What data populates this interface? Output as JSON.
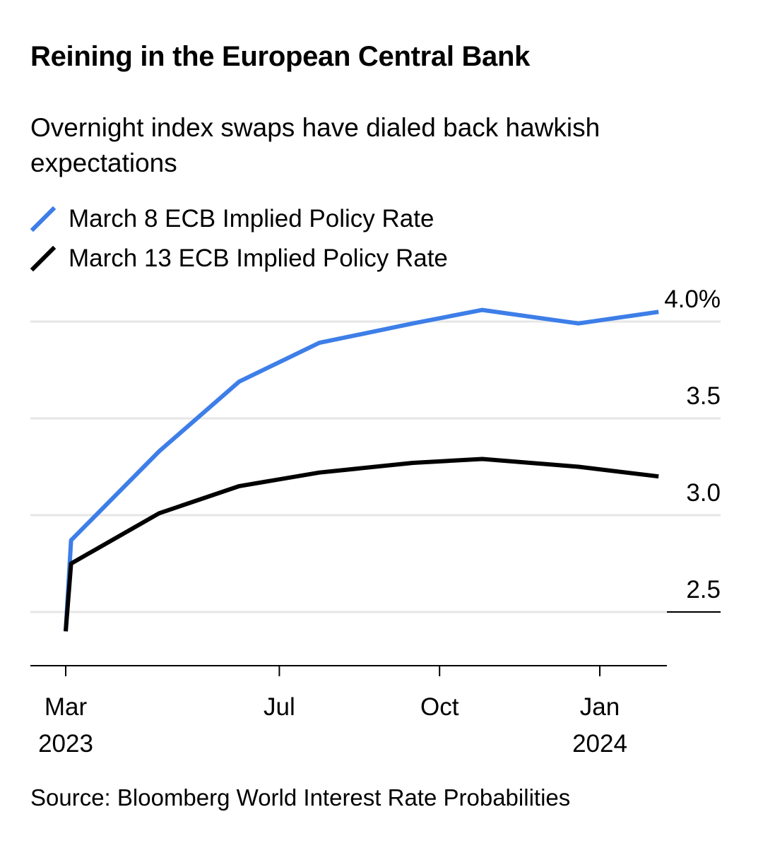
{
  "chart_data": {
    "type": "line",
    "title": "Reining in the European Central Bank",
    "subtitle": "Overnight index swaps have dialed back hawkish expectations",
    "source": "Source: Bloomberg World Interest Rate Probabilities",
    "xlabel": "",
    "ylabel": "",
    "ylim": [
      2.2,
      4.1
    ],
    "y_ticks": [
      {
        "value": 2.5,
        "label": "2.5"
      },
      {
        "value": 3.0,
        "label": "3.0"
      },
      {
        "value": 3.5,
        "label": "3.5"
      },
      {
        "value": 4.0,
        "label": "4.0%"
      }
    ],
    "x_ticks": [
      {
        "month_index": 0,
        "label": "Mar",
        "sublabel": "2023"
      },
      {
        "month_index": 4,
        "label": "Jul",
        "sublabel": ""
      },
      {
        "month_index": 7,
        "label": "Oct",
        "sublabel": ""
      },
      {
        "month_index": 10,
        "label": "Jan",
        "sublabel": "2024"
      }
    ],
    "series": [
      {
        "name": "March 8 ECB Implied Policy Rate",
        "color": "#3d7ee8",
        "points": [
          {
            "x": 0.0,
            "y": 2.4
          },
          {
            "x": 0.1,
            "y": 2.87
          },
          {
            "x": 1.75,
            "y": 3.33
          },
          {
            "x": 3.25,
            "y": 3.69
          },
          {
            "x": 4.75,
            "y": 3.89
          },
          {
            "x": 6.5,
            "y": 3.99
          },
          {
            "x": 7.8,
            "y": 4.06
          },
          {
            "x": 9.6,
            "y": 3.99
          },
          {
            "x": 11.1,
            "y": 4.05
          }
        ]
      },
      {
        "name": "March 13 ECB Implied Policy Rate",
        "color": "#000000",
        "points": [
          {
            "x": 0.0,
            "y": 2.4
          },
          {
            "x": 0.1,
            "y": 2.75
          },
          {
            "x": 1.75,
            "y": 3.01
          },
          {
            "x": 3.25,
            "y": 3.15
          },
          {
            "x": 4.75,
            "y": 3.22
          },
          {
            "x": 6.5,
            "y": 3.27
          },
          {
            "x": 7.8,
            "y": 3.29
          },
          {
            "x": 9.6,
            "y": 3.25
          },
          {
            "x": 11.1,
            "y": 3.2
          }
        ]
      }
    ]
  }
}
